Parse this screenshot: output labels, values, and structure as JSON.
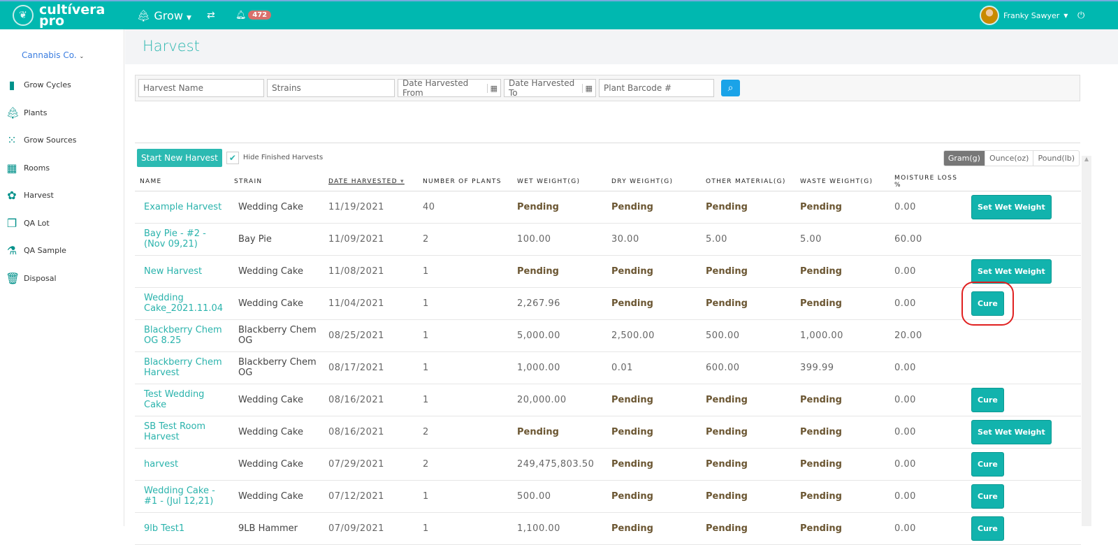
{
  "header": {
    "brand": "cultívera pro",
    "module": "Grow",
    "notifications": "472",
    "user": "Franky Sawyer"
  },
  "sidebar": {
    "company": "Cannabis Co.",
    "items": [
      {
        "label": "Grow Cycles",
        "icon": "bar-chart-icon"
      },
      {
        "label": "Plants",
        "icon": "tree-icon"
      },
      {
        "label": "Grow Sources",
        "icon": "dots-icon"
      },
      {
        "label": "Rooms",
        "icon": "grid-icon"
      },
      {
        "label": "Harvest",
        "icon": "flower-icon"
      },
      {
        "label": "QA Lot",
        "icon": "copy-icon"
      },
      {
        "label": "QA Sample",
        "icon": "flask-icon"
      },
      {
        "label": "Disposal",
        "icon": "trash-icon"
      }
    ]
  },
  "page": {
    "title": "Harvest"
  },
  "filters": {
    "harvest_name": "Harvest Name",
    "strains": "Strains",
    "from": "Date Harvested From",
    "to": "Date Harvested To",
    "barcode": "Plant Barcode #"
  },
  "toolbar": {
    "start": "Start New Harvest",
    "hide_finished": "Hide Finished Harvests",
    "hide_checked": true,
    "units": [
      "Gram(g)",
      "Ounce(oz)",
      "Pound(lb)"
    ],
    "selected_unit": "Gram(g)"
  },
  "table": {
    "headers": [
      "NAME",
      "STRAIN",
      "DATE HARVESTED",
      "NUMBER OF PLANTS",
      "WET WEIGHT(G)",
      "DRY WEIGHT(G)",
      "OTHER MATERIAL(G)",
      "WASTE WEIGHT(G)",
      "MOISTURE LOSS %"
    ],
    "rows": [
      [
        "Example Harvest",
        "Wedding Cake",
        "11/19/2021",
        "40",
        "Pending",
        "Pending",
        "Pending",
        "Pending",
        "0.00",
        "Set Wet Weight"
      ],
      [
        "Bay Pie - #2 - (Nov 09,21)",
        "Bay Pie",
        "11/09/2021",
        "2",
        "100.00",
        "30.00",
        "5.00",
        "5.00",
        "60.00",
        ""
      ],
      [
        "New Harvest",
        "Wedding Cake",
        "11/08/2021",
        "1",
        "Pending",
        "Pending",
        "Pending",
        "Pending",
        "0.00",
        "Set Wet Weight"
      ],
      [
        "Wedding Cake_2021.11.04",
        "Wedding Cake",
        "11/04/2021",
        "1",
        "2,267.96",
        "Pending",
        "Pending",
        "Pending",
        "0.00",
        "Cure"
      ],
      [
        "Blackberry Chem OG 8.25",
        "Blackberry Chem OG",
        "08/25/2021",
        "1",
        "5,000.00",
        "2,500.00",
        "500.00",
        "1,000.00",
        "20.00",
        ""
      ],
      [
        "Blackberry Chem Harvest",
        "Blackberry Chem OG",
        "08/17/2021",
        "1",
        "1,000.00",
        "0.01",
        "600.00",
        "399.99",
        "0.00",
        ""
      ],
      [
        "Test Wedding Cake",
        "Wedding Cake",
        "08/16/2021",
        "1",
        "20,000.00",
        "Pending",
        "Pending",
        "Pending",
        "0.00",
        "Cure"
      ],
      [
        "SB Test Room Harvest",
        "Wedding Cake",
        "08/16/2021",
        "2",
        "Pending",
        "Pending",
        "Pending",
        "Pending",
        "0.00",
        "Set Wet Weight"
      ],
      [
        "harvest",
        "Wedding Cake",
        "07/29/2021",
        "2",
        "249,475,803.50",
        "Pending",
        "Pending",
        "Pending",
        "0.00",
        "Cure"
      ],
      [
        "Wedding Cake - #1 - (Jul 12,21)",
        "Wedding Cake",
        "07/12/2021",
        "1",
        "500.00",
        "Pending",
        "Pending",
        "Pending",
        "0.00",
        "Cure"
      ],
      [
        "9lb Test1",
        "9LB Hammer",
        "07/09/2021",
        "1",
        "1,100.00",
        "Pending",
        "Pending",
        "Pending",
        "0.00",
        "Cure"
      ]
    ]
  },
  "highlighted_row": 3
}
